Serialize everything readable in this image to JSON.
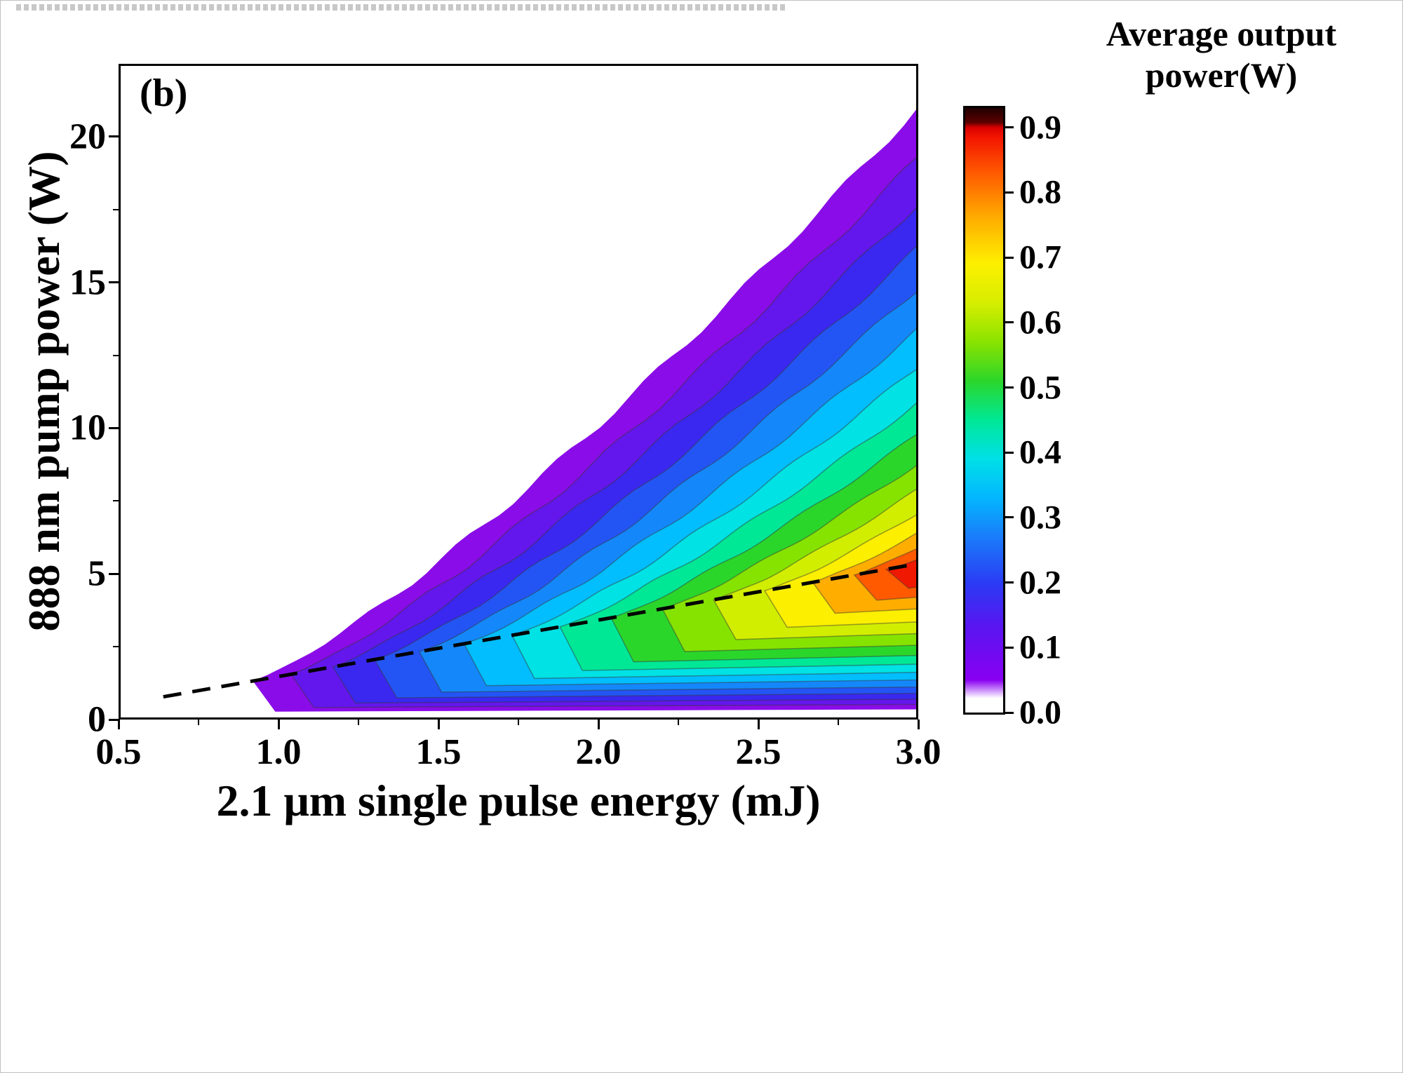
{
  "watermark": {
    "text": ""
  },
  "panel_label": "(b)",
  "axes": {
    "x": {
      "label": "2.1 μm single pulse energy (mJ)",
      "tick_labels": [
        "0.5",
        "1.0",
        "1.5",
        "2.0",
        "2.5",
        "3.0"
      ],
      "tick_values": [
        0.5,
        1.0,
        1.5,
        2.0,
        2.5,
        3.0
      ]
    },
    "y": {
      "label": "888 nm pump power (W)",
      "tick_labels": [
        "0",
        "5",
        "10",
        "15",
        "20"
      ],
      "tick_values": [
        0,
        5,
        10,
        15,
        20
      ]
    }
  },
  "colorbar": {
    "title_line1": "Average output",
    "title_line2": "power(W)",
    "tick_labels": [
      "0.9",
      "0.8",
      "0.7",
      "0.6",
      "0.5",
      "0.4",
      "0.3",
      "0.2",
      "0.1",
      "0.0"
    ],
    "tick_values": [
      0.9,
      0.8,
      0.7,
      0.6,
      0.5,
      0.4,
      0.3,
      0.2,
      0.1,
      0.0
    ],
    "display_max": 0.93,
    "stops": [
      {
        "v": 0.0,
        "c": "#ffffff"
      },
      {
        "v": 0.022,
        "c": "#ffffff"
      },
      {
        "v": 0.05,
        "c": "#8900f2"
      },
      {
        "v": 0.13,
        "c": "#5a14f0"
      },
      {
        "v": 0.2,
        "c": "#2a3cf4"
      },
      {
        "v": 0.27,
        "c": "#1a7cfa"
      },
      {
        "v": 0.33,
        "c": "#03b6fe"
      },
      {
        "v": 0.39,
        "c": "#00e0e8"
      },
      {
        "v": 0.45,
        "c": "#00e896"
      },
      {
        "v": 0.51,
        "c": "#2bd62b"
      },
      {
        "v": 0.57,
        "c": "#8ae300"
      },
      {
        "v": 0.63,
        "c": "#d6ee00"
      },
      {
        "v": 0.69,
        "c": "#fdf000"
      },
      {
        "v": 0.76,
        "c": "#ffae00"
      },
      {
        "v": 0.83,
        "c": "#ff5a00"
      },
      {
        "v": 0.885,
        "c": "#f31500"
      },
      {
        "v": 0.9,
        "c": "#d90000"
      },
      {
        "v": 0.908,
        "c": "#5a0000"
      },
      {
        "v": 0.93,
        "c": "#200000"
      }
    ]
  },
  "chart_data": {
    "type": "contour",
    "title": "",
    "panel": "(b)",
    "xlabel": "2.1 μm single pulse energy (mJ)",
    "ylabel": "888 nm pump power (W)",
    "colorbar_label": "Average output power(W)",
    "x_range": [
      0.5,
      3.0
    ],
    "y_range": [
      0,
      22.5
    ],
    "x_ticks": [
      0.5,
      1.0,
      1.5,
      2.0,
      2.5,
      3.0
    ],
    "y_ticks": [
      0,
      5,
      10,
      15,
      20
    ],
    "value_range": [
      0.0,
      0.9
    ],
    "grid": false,
    "legend_position": "right-colorbar",
    "peak": {
      "x_mJ": 2.95,
      "y_W": 5.0,
      "value_W": 0.9
    },
    "dashed_ridge_line": {
      "from_mJ_W": [
        0.64,
        0.78
      ],
      "to_mJ_W": [
        3.0,
        5.35
      ]
    },
    "bands": [
      {
        "level": 0.02,
        "color": "#8a0ce8",
        "tip_mJ": 0.92,
        "right_top_W": 21.0,
        "right_bottom_W": 0.35
      },
      {
        "level": 0.08,
        "color": "#6317ec",
        "tip_mJ": 1.04,
        "right_top_W": 19.3,
        "right_bottom_W": 0.52
      },
      {
        "level": 0.14,
        "color": "#3a28f0",
        "tip_mJ": 1.17,
        "right_top_W": 17.7,
        "right_bottom_W": 0.7
      },
      {
        "level": 0.2,
        "color": "#2355f5",
        "tip_mJ": 1.3,
        "right_top_W": 16.2,
        "right_bottom_W": 0.9
      },
      {
        "level": 0.26,
        "color": "#1488fb",
        "tip_mJ": 1.44,
        "right_top_W": 14.8,
        "right_bottom_W": 1.12
      },
      {
        "level": 0.32,
        "color": "#02befe",
        "tip_mJ": 1.58,
        "right_top_W": 13.4,
        "right_bottom_W": 1.36
      },
      {
        "level": 0.38,
        "color": "#00e2e4",
        "tip_mJ": 1.73,
        "right_top_W": 12.1,
        "right_bottom_W": 1.62
      },
      {
        "level": 0.44,
        "color": "#00e896",
        "tip_mJ": 1.88,
        "right_top_W": 10.9,
        "right_bottom_W": 1.9
      },
      {
        "level": 0.5,
        "color": "#2bd62b",
        "tip_mJ": 2.04,
        "right_top_W": 9.8,
        "right_bottom_W": 2.2
      },
      {
        "level": 0.56,
        "color": "#86e300",
        "tip_mJ": 2.2,
        "right_top_W": 8.8,
        "right_bottom_W": 2.55
      },
      {
        "level": 0.62,
        "color": "#d2ee00",
        "tip_mJ": 2.36,
        "right_top_W": 7.9,
        "right_bottom_W": 2.95
      },
      {
        "level": 0.68,
        "color": "#fcef00",
        "tip_mJ": 2.52,
        "right_top_W": 7.1,
        "right_bottom_W": 3.35
      },
      {
        "level": 0.75,
        "color": "#ffae00",
        "tip_mJ": 2.67,
        "right_top_W": 6.4,
        "right_bottom_W": 3.8
      },
      {
        "level": 0.82,
        "color": "#ff5a00",
        "tip_mJ": 2.8,
        "right_top_W": 5.9,
        "right_bottom_W": 4.2
      },
      {
        "level": 0.88,
        "color": "#f01800",
        "tip_mJ": 2.9,
        "right_top_W": 5.5,
        "right_bottom_W": 4.55
      }
    ]
  }
}
